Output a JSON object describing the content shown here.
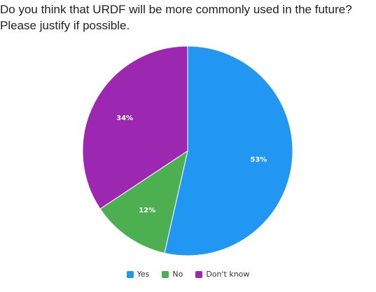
{
  "chart_data": {
    "type": "pie",
    "title": "Do you think that URDF will be more commonly used in the future? Please justify if possible.",
    "slices": [
      {
        "label": "Yes",
        "value": 53,
        "display": "53%",
        "color": "#2196F3"
      },
      {
        "label": "No",
        "value": 12,
        "display": "12%",
        "color": "#4CAF50"
      },
      {
        "label": "Don't know",
        "value": 34,
        "display": "34%",
        "color": "#9C27B0"
      }
    ],
    "legend_position": "bottom"
  }
}
